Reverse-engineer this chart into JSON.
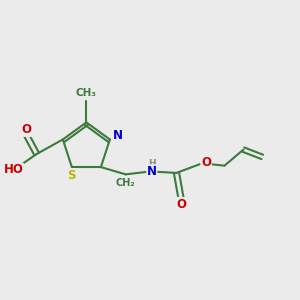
{
  "bg_color": "#ebebeb",
  "bond_color": "#3d7a3d",
  "bond_width": 1.5,
  "atom_colors": {
    "S": "#b8b800",
    "N": "#0000cc",
    "O": "#cc0000",
    "H": "#888888",
    "C": "#3d7a3d"
  },
  "font_size": 8.5,
  "fig_size": [
    3.0,
    3.0
  ],
  "dpi": 100,
  "xlim": [
    0,
    10
  ],
  "ylim": [
    0,
    10
  ]
}
